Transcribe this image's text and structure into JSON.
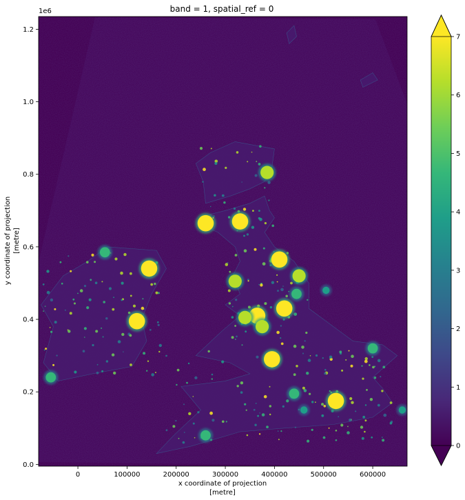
{
  "chart_data": {
    "type": "heatmap",
    "title": "band = 1, spatial_ref = 0",
    "xlabel_line1": "x coordinate of projection",
    "xlabel_line2": "[metre]",
    "ylabel_line1": "y coordinate of projection",
    "ylabel_line2": "[metre]",
    "y_offset_text": "1e6",
    "xlim": [
      -80000,
      670000
    ],
    "ylim": [
      -5000,
      1235000
    ],
    "x_ticks": [
      0,
      100000,
      200000,
      300000,
      400000,
      500000,
      600000
    ],
    "x_tick_labels": [
      "0",
      "100000",
      "200000",
      "300000",
      "400000",
      "500000",
      "600000"
    ],
    "y_ticks": [
      0.0,
      0.2,
      0.4,
      0.6,
      0.8,
      1.0,
      1.2
    ],
    "y_tick_labels": [
      "0.0",
      "0.2",
      "0.4",
      "0.6",
      "0.8",
      "1.0",
      "1.2"
    ],
    "colorbar": {
      "colormap": "viridis",
      "vmin": 0,
      "vmax": 7,
      "extend": "both",
      "ticks": [
        0,
        1,
        2,
        3,
        4,
        5,
        6,
        7
      ],
      "tick_labels": [
        "0",
        "1",
        "2",
        "3",
        "4",
        "5",
        "6",
        "7"
      ],
      "colors": [
        "#440154",
        "#482878",
        "#3e4989",
        "#31688e",
        "#26828e",
        "#1f9e89",
        "#35b779",
        "#6ece58",
        "#b5de2b",
        "#fde725"
      ]
    },
    "hotspots": [
      {
        "x": 525000,
        "y": 175000,
        "value": 7
      },
      {
        "x": 395000,
        "y": 290000,
        "value": 7
      },
      {
        "x": 365000,
        "y": 410000,
        "value": 7
      },
      {
        "x": 420000,
        "y": 430000,
        "value": 7
      },
      {
        "x": 410000,
        "y": 565000,
        "value": 7
      },
      {
        "x": 260000,
        "y": 665000,
        "value": 7
      },
      {
        "x": 330000,
        "y": 670000,
        "value": 7
      },
      {
        "x": 120000,
        "y": 395000,
        "value": 7
      },
      {
        "x": 145000,
        "y": 540000,
        "value": 7
      },
      {
        "x": 385000,
        "y": 805000,
        "value": 6
      },
      {
        "x": 320000,
        "y": 505000,
        "value": 6
      },
      {
        "x": 260000,
        "y": 80000,
        "value": 5
      },
      {
        "x": 450000,
        "y": 520000,
        "value": 6
      },
      {
        "x": 375000,
        "y": 380000,
        "value": 6
      },
      {
        "x": 340000,
        "y": 405000,
        "value": 6
      },
      {
        "x": 445000,
        "y": 470000,
        "value": 5
      },
      {
        "x": 440000,
        "y": 195000,
        "value": 5
      },
      {
        "x": 600000,
        "y": 320000,
        "value": 5
      },
      {
        "x": 660000,
        "y": 150000,
        "value": 4
      },
      {
        "x": 460000,
        "y": 150000,
        "value": 4
      },
      {
        "x": 55000,
        "y": 585000,
        "value": 5
      },
      {
        "x": -55000,
        "y": 240000,
        "value": 5
      },
      {
        "x": 505000,
        "y": 480000,
        "value": 4
      }
    ]
  }
}
